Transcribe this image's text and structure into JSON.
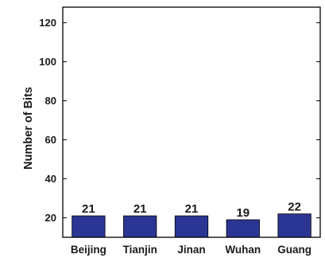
{
  "chart_data": {
    "type": "bar",
    "categories": [
      "Beijing",
      "Tianjin",
      "Jinan",
      "Wuhan",
      "Guang"
    ],
    "values": [
      21,
      21,
      21,
      19,
      22
    ],
    "data_labels": [
      "21",
      "21",
      "21",
      "19",
      "22"
    ],
    "title": "",
    "xlabel": "",
    "ylabel": "Number of Bits",
    "ylim": [
      10,
      128
    ],
    "yticks": [
      20,
      40,
      60,
      80,
      100,
      120
    ],
    "grid": false,
    "legend": "none",
    "bar_color": "#2b3593"
  }
}
